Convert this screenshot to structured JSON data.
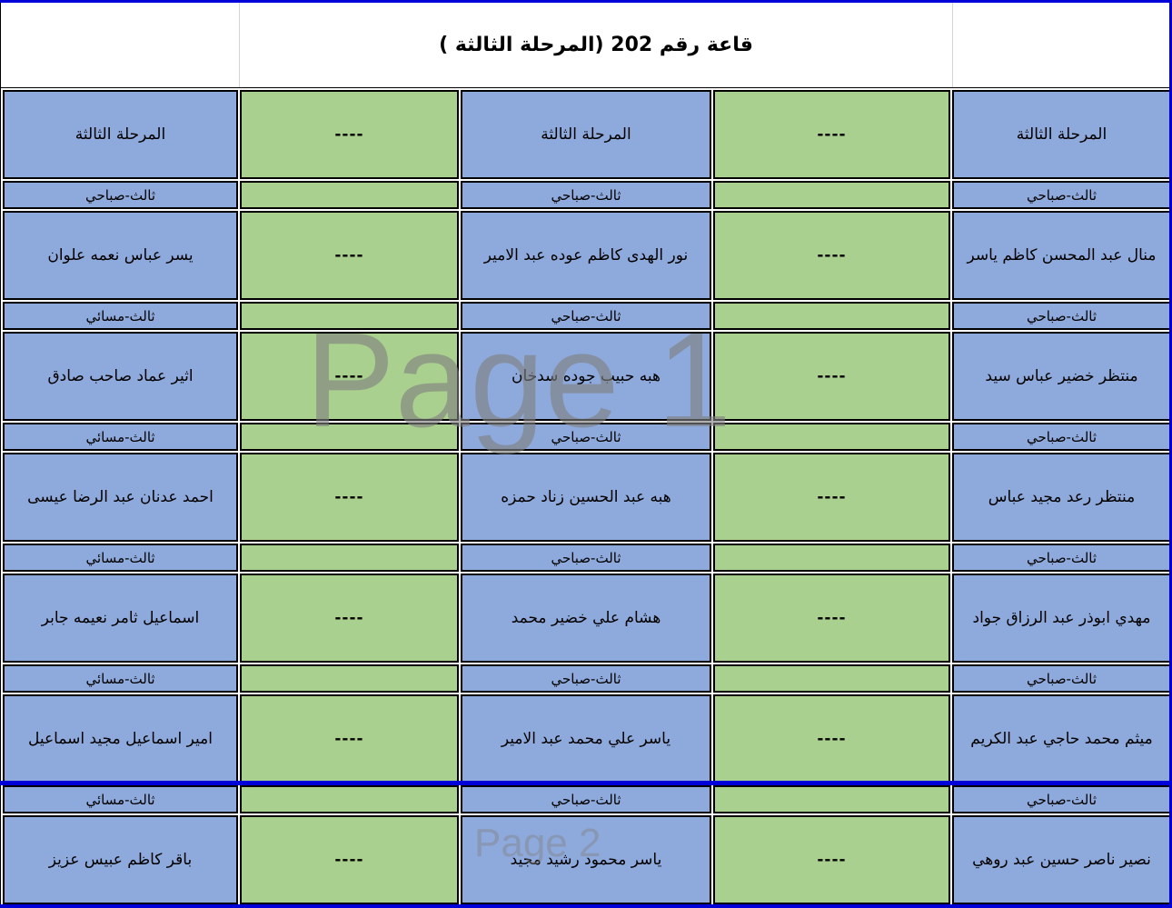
{
  "header": {
    "title": "قاعة رقم 202 (المرحلة الثالثة )"
  },
  "watermarks": {
    "page1": "Page 1",
    "page2": "Page 2"
  },
  "colors": {
    "cell_blue": "#8EA9DB",
    "cell_green": "#A9D08E",
    "page_break_blue": "#0000D8",
    "watermark_gray": "#808080",
    "border_black": "#000000"
  },
  "table": {
    "rows": [
      {
        "kind": "tall",
        "cells": [
          "المرحلة الثالثة",
          "----",
          "المرحلة الثالثة",
          "----",
          "المرحلة الثالثة"
        ]
      },
      {
        "kind": "thin",
        "cells": [
          "ثالث-صباحي",
          "",
          "ثالث-صباحي",
          "",
          "ثالث-صباحي"
        ]
      },
      {
        "kind": "tall",
        "cells": [
          "يسر عباس نعمه علوان",
          "----",
          "نور الهدى كاظم عوده عبد الامير",
          "----",
          "منال عبد المحسن كاظم ياسر"
        ]
      },
      {
        "kind": "thin",
        "cells": [
          "ثالث-مسائي",
          "",
          "ثالث-صباحي",
          "",
          "ثالث-صباحي"
        ]
      },
      {
        "kind": "tall",
        "cells": [
          "اثير عماد صاحب صادق",
          "----",
          "هبه حبيب جوده سدخان",
          "----",
          "منتظر خضير عباس سيد"
        ]
      },
      {
        "kind": "thin",
        "cells": [
          "ثالث-مسائي",
          "",
          "ثالث-صباحي",
          "",
          "ثالث-صباحي"
        ]
      },
      {
        "kind": "tall",
        "cells": [
          "احمد عدنان عبد الرضا عيسى",
          "----",
          "هبه عبد الحسين زناد حمزه",
          "----",
          "منتظر رعد مجيد عباس"
        ]
      },
      {
        "kind": "thin",
        "cells": [
          "ثالث-مسائي",
          "",
          "ثالث-صباحي",
          "",
          "ثالث-صباحي"
        ]
      },
      {
        "kind": "tall",
        "cells": [
          "اسماعيل ثامر نعيمه جابر",
          "----",
          "هشام علي خضير محمد",
          "----",
          "مهدي ابوذر عبد الرزاق جواد"
        ]
      },
      {
        "kind": "thin",
        "cells": [
          "ثالث-مسائي",
          "",
          "ثالث-صباحي",
          "",
          "ثالث-صباحي"
        ]
      },
      {
        "kind": "tall",
        "cells": [
          "امير اسماعيل مجيد اسماعيل",
          "----",
          "ياسر علي محمد عبد الامير",
          "----",
          "ميثم محمد حاجي عبد الكريم"
        ]
      },
      {
        "kind": "thin",
        "cells": [
          "ثالث-مسائي",
          "",
          "ثالث-صباحي",
          "",
          "ثالث-صباحي"
        ]
      },
      {
        "kind": "tall",
        "cells": [
          "باقر كاظم عبيس عزيز",
          "----",
          "ياسر محمود رشيد مجيد",
          "----",
          "نصير ناصر حسين عبد روهي"
        ]
      }
    ]
  }
}
